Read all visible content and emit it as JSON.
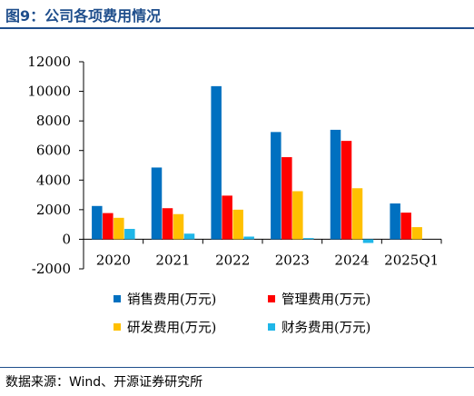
{
  "header": {
    "title": "图9：公司各项费用情况"
  },
  "footer": {
    "source": "数据来源：Wind、开源证券研究所"
  },
  "chart_data": {
    "type": "bar",
    "categories": [
      "2020",
      "2021",
      "2022",
      "2023",
      "2024",
      "2025Q1"
    ],
    "series": [
      {
        "name": "销售费用(万元)",
        "color": "#0070c0",
        "values": [
          2250,
          4850,
          10350,
          7250,
          7400,
          2420
        ]
      },
      {
        "name": "管理费用(万元)",
        "color": "#ff0000",
        "values": [
          1770,
          2100,
          2950,
          5550,
          6650,
          1800
        ]
      },
      {
        "name": "研发费用(万元)",
        "color": "#ffc000",
        "values": [
          1450,
          1700,
          2000,
          3250,
          3450,
          820
        ]
      },
      {
        "name": "财务费用(万元)",
        "color": "#1fb6e8",
        "values": [
          700,
          380,
          180,
          80,
          -250,
          0
        ]
      }
    ],
    "yticks": [
      -2000,
      0,
      2000,
      4000,
      6000,
      8000,
      10000,
      12000
    ],
    "ylim": [
      -2000,
      12000
    ],
    "grid": false,
    "legend": "bottom",
    "title": "",
    "xlabel": "",
    "ylabel": ""
  }
}
